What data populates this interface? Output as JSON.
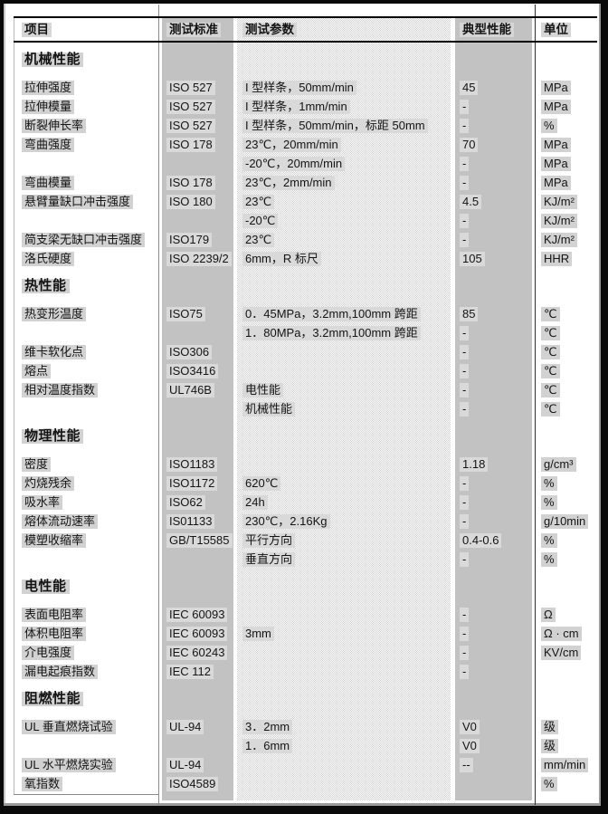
{
  "colors": {
    "column_gray": "#c2c2c2",
    "highlight_gray": "#d9d9d9",
    "frame_black": "#0a0a0a"
  },
  "table": {
    "columns": [
      "项目",
      "测试标准",
      "测试参数",
      "典型性能",
      "单位"
    ],
    "rows": [
      {
        "type": "section",
        "item": "机械性能"
      },
      {
        "type": "data",
        "item": "拉伸强度",
        "std": "ISO 527",
        "param": "I 型样条，50mm/min",
        "val": "45",
        "unit": "MPa"
      },
      {
        "type": "data",
        "item": "拉伸模量",
        "std": "ISO 527",
        "param": "I 型样条，1mm/min",
        "val": "-",
        "unit": "MPa"
      },
      {
        "type": "data",
        "item": "断裂伸长率",
        "std": "ISO 527",
        "param": "I 型样条，50mm/min，标距 50mm",
        "val": "-",
        "unit": "%"
      },
      {
        "type": "data",
        "item": "弯曲强度",
        "std": "ISO 178",
        "param": "23℃，20mm/min",
        "val": "70",
        "unit": "MPa"
      },
      {
        "type": "data",
        "item": "",
        "std": "",
        "param": "-20℃，20mm/min",
        "val": "-",
        "unit": "MPa"
      },
      {
        "type": "data",
        "item": "弯曲模量",
        "std": "ISO 178",
        "param": "23℃，2mm/min",
        "val": "-",
        "unit": "MPa"
      },
      {
        "type": "data",
        "item": "悬臂量缺口冲击强度",
        "std": "ISO 180",
        "param": "23℃",
        "val": "4.5",
        "unit": "KJ/m²"
      },
      {
        "type": "data",
        "item": "",
        "std": "",
        "param": "-20℃",
        "val": "-",
        "unit": "KJ/m²"
      },
      {
        "type": "data",
        "item": "简支梁无缺口冲击强度",
        "std": "ISO179",
        "param": "23℃",
        "val": "-",
        "unit": "KJ/m²"
      },
      {
        "type": "data",
        "item": "洛氏硬度",
        "std": "ISO 2239/2",
        "param": "6mm，R 标尺",
        "val": "105",
        "unit": "HHR"
      },
      {
        "type": "section",
        "item": "热性能"
      },
      {
        "type": "data",
        "item": "热变形温度",
        "std": "ISO75",
        "param": "0．45MPa，3.2mm,100mm 跨距",
        "val": "85",
        "unit": "℃"
      },
      {
        "type": "data",
        "item": "",
        "std": "",
        "param": "1．80MPa，3.2mm,100mm 跨距",
        "val": "-",
        "unit": "℃"
      },
      {
        "type": "data",
        "item": "维卡软化点",
        "std": "ISO306",
        "param": "",
        "val": "-",
        "unit": "℃"
      },
      {
        "type": "data",
        "item": "熔点",
        "std": "ISO3416",
        "param": "",
        "val": "-",
        "unit": "℃"
      },
      {
        "type": "data",
        "item": "相对温度指数",
        "std": "UL746B",
        "param": "电性能",
        "val": "-",
        "unit": "℃"
      },
      {
        "type": "data",
        "item": "",
        "std": "",
        "param": "机械性能",
        "val": "-",
        "unit": "℃"
      },
      {
        "type": "section",
        "item": "物理性能"
      },
      {
        "type": "data",
        "item": "密度",
        "std": "ISO1183",
        "param": "",
        "val": "1.18",
        "unit": "g/cm³"
      },
      {
        "type": "data",
        "item": "灼烧残余",
        "std": "ISO1172",
        "param": "620℃",
        "val": "-",
        "unit": "%"
      },
      {
        "type": "data",
        "item": "吸水率",
        "std": "ISO62",
        "param": "24h",
        "val": "-",
        "unit": "%"
      },
      {
        "type": "data",
        "item": "熔体流动速率",
        "std": "IS01133",
        "param": "230℃，2.16Kg",
        "val": "-",
        "unit": "g/10min"
      },
      {
        "type": "data",
        "item": "模塑收缩率",
        "std": "GB/T15585",
        "param": "平行方向",
        "val": "0.4-0.6",
        "unit": "%"
      },
      {
        "type": "data",
        "item": "",
        "std": "",
        "param": "垂直方向",
        "val": "-",
        "unit": "%"
      },
      {
        "type": "section",
        "item": "电性能"
      },
      {
        "type": "data",
        "item": "表面电阻率",
        "std": "IEC 60093",
        "param": "",
        "val": "-",
        "unit": "Ω"
      },
      {
        "type": "data",
        "item": "体积电阻率",
        "std": "IEC 60093",
        "param": "3mm",
        "val": "-",
        "unit": "Ω · cm"
      },
      {
        "type": "data",
        "item": "介电强度",
        "std": "IEC 60243",
        "param": "",
        "val": "-",
        "unit": "KV/cm"
      },
      {
        "type": "data",
        "item": "漏电起痕指数",
        "std": "IEC 112",
        "param": "",
        "val": "-",
        "unit": ""
      },
      {
        "type": "section",
        "item": "阻燃性能"
      },
      {
        "type": "data",
        "item": "UL 垂直燃烧试验",
        "std": "UL-94",
        "param": "3．2mm",
        "val": "V0",
        "unit": "级"
      },
      {
        "type": "data",
        "item": "",
        "std": "",
        "param": "1．6mm",
        "val": "V0",
        "unit": "级"
      },
      {
        "type": "data",
        "item": "UL 水平燃烧实验",
        "std": "UL-94",
        "param": "",
        "val": "--",
        "unit": "mm/min"
      },
      {
        "type": "data",
        "item": "氧指数",
        "std": "ISO4589",
        "param": "",
        "val": "",
        "unit": "%"
      }
    ]
  }
}
